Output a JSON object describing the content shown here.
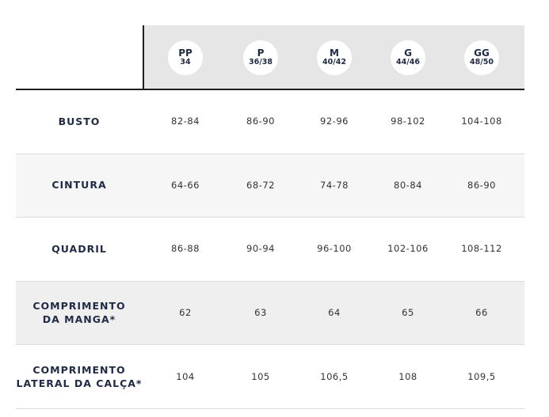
{
  "header": {
    "sizes": [
      {
        "size": "PP",
        "range": "34"
      },
      {
        "size": "P",
        "range": "36/38"
      },
      {
        "size": "M",
        "range": "40/42"
      },
      {
        "size": "G",
        "range": "44/46"
      },
      {
        "size": "GG",
        "range": "48/50"
      }
    ]
  },
  "rows": [
    {
      "label": [
        "BUSTO"
      ],
      "values": [
        "82-84",
        "86-90",
        "92-96",
        "98-102",
        "104-108"
      ]
    },
    {
      "label": [
        "CINTURA"
      ],
      "values": [
        "64-66",
        "68-72",
        "74-78",
        "80-84",
        "86-90"
      ]
    },
    {
      "label": [
        "QUADRIL"
      ],
      "values": [
        "86-88",
        "90-94",
        "96-100",
        "102-106",
        "108-112"
      ]
    },
    {
      "label": [
        "COMPRIMENTO",
        "DA MANGA*"
      ],
      "values": [
        "62",
        "63",
        "64",
        "65",
        "66"
      ]
    },
    {
      "label": [
        "COMPRIMENTO",
        "LATERAL DA CALÇA*"
      ],
      "values": [
        "104",
        "105",
        "106,5",
        "108",
        "109,5"
      ]
    }
  ]
}
